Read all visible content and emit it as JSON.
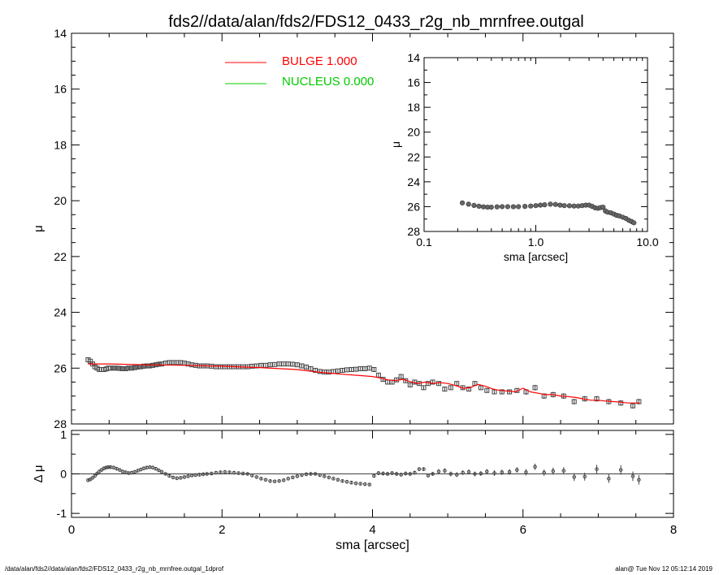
{
  "title": "fds2//data/alan/fds2/FDS12_0433_r2g_nb_mrnfree.outgal",
  "footer_left": "/data/alan/fds2//data/alan/fds2/FDS12_0433_r2g_nb_mrnfree.outgal_1dprof",
  "footer_right": "alan@  Tue Nov 12 05:12:14 2019",
  "colors": {
    "bulge": "#ff0000",
    "nucleus": "#00cc00",
    "points": "#444444",
    "axis": "#000000"
  },
  "chart_data": [
    {
      "id": "main",
      "type": "scatter",
      "xlabel": "",
      "ylabel": "μ",
      "xlim": [
        0,
        8
      ],
      "ylim": [
        28,
        14
      ],
      "yticks": [
        "14",
        "16",
        "18",
        "20",
        "22",
        "24",
        "26",
        "28"
      ],
      "legend": {
        "placement": "top-left",
        "entries": [
          {
            "label": "BULGE  1.000",
            "color": "#ff0000"
          },
          {
            "label": "NUCLEUS  0.000",
            "color": "#00cc00"
          }
        ]
      },
      "series": [
        {
          "name": "data",
          "marker": "square",
          "x": [
            0.22,
            0.25,
            0.28,
            0.31,
            0.34,
            0.37,
            0.4,
            0.43,
            0.46,
            0.49,
            0.52,
            0.56,
            0.6,
            0.64,
            0.68,
            0.72,
            0.76,
            0.8,
            0.84,
            0.88,
            0.92,
            0.96,
            1.0,
            1.04,
            1.08,
            1.12,
            1.16,
            1.2,
            1.25,
            1.3,
            1.35,
            1.4,
            1.45,
            1.5,
            1.55,
            1.6,
            1.65,
            1.7,
            1.75,
            1.8,
            1.86,
            1.92,
            1.98,
            2.04,
            2.1,
            2.16,
            2.22,
            2.28,
            2.34,
            2.4,
            2.46,
            2.52,
            2.58,
            2.64,
            2.7,
            2.76,
            2.82,
            2.88,
            2.94,
            3.0,
            3.06,
            3.12,
            3.18,
            3.24,
            3.3,
            3.36,
            3.42,
            3.48,
            3.54,
            3.6,
            3.66,
            3.72,
            3.78,
            3.84,
            3.9,
            3.96,
            4.02,
            4.08,
            4.14,
            4.2,
            4.26,
            4.32,
            4.38,
            4.44,
            4.5,
            4.56,
            4.62,
            4.68,
            4.74,
            4.8,
            4.88,
            4.96,
            5.04,
            5.12,
            5.2,
            5.28,
            5.36,
            5.44,
            5.52,
            5.62,
            5.72,
            5.82,
            5.92,
            6.04,
            6.16,
            6.28,
            6.4,
            6.54,
            6.68,
            6.82,
            6.98,
            7.14,
            7.3,
            7.46,
            7.54
          ],
          "y": [
            25.7,
            25.75,
            25.85,
            25.95,
            26.0,
            26.05,
            26.05,
            26.05,
            26.03,
            26.0,
            26.0,
            26.0,
            26.0,
            26.01,
            26.02,
            26.02,
            26.0,
            26.0,
            25.98,
            25.96,
            25.95,
            25.93,
            25.92,
            25.92,
            25.9,
            25.88,
            25.86,
            25.85,
            25.82,
            25.8,
            25.8,
            25.8,
            25.8,
            25.82,
            25.85,
            25.88,
            25.9,
            25.92,
            25.92,
            25.92,
            25.93,
            25.95,
            25.95,
            25.95,
            25.95,
            25.95,
            25.95,
            25.95,
            25.95,
            25.93,
            25.92,
            25.9,
            25.9,
            25.88,
            25.87,
            25.85,
            25.85,
            25.85,
            25.86,
            25.88,
            25.92,
            25.96,
            26.02,
            26.08,
            26.12,
            26.14,
            26.14,
            26.12,
            26.1,
            26.08,
            26.06,
            26.05,
            26.04,
            26.02,
            26.02,
            26.0,
            26.05,
            26.25,
            26.4,
            26.5,
            26.5,
            26.42,
            26.3,
            26.45,
            26.6,
            26.5,
            26.55,
            26.7,
            26.55,
            26.5,
            26.55,
            26.75,
            26.7,
            26.55,
            26.7,
            26.75,
            26.55,
            26.7,
            26.8,
            26.85,
            26.85,
            26.85,
            26.8,
            26.85,
            26.7,
            27.0,
            26.95,
            27.0,
            27.2,
            27.1,
            27.1,
            27.2,
            27.25,
            27.35,
            27.2
          ],
          "err": [
            0.06,
            0.06,
            0.06,
            0.06,
            0.06,
            0.06,
            0.06,
            0.06,
            0.06,
            0.06,
            0.06,
            0.06,
            0.06,
            0.06,
            0.06,
            0.06,
            0.06,
            0.06,
            0.06,
            0.06,
            0.06,
            0.06,
            0.06,
            0.06,
            0.06,
            0.06,
            0.06,
            0.06,
            0.06,
            0.06,
            0.06,
            0.06,
            0.06,
            0.06,
            0.06,
            0.06,
            0.06,
            0.06,
            0.06,
            0.06,
            0.06,
            0.06,
            0.06,
            0.06,
            0.06,
            0.06,
            0.06,
            0.06,
            0.06,
            0.06,
            0.06,
            0.06,
            0.06,
            0.06,
            0.06,
            0.06,
            0.06,
            0.06,
            0.06,
            0.06,
            0.06,
            0.06,
            0.06,
            0.06,
            0.06,
            0.06,
            0.06,
            0.06,
            0.06,
            0.06,
            0.06,
            0.06,
            0.06,
            0.06,
            0.06,
            0.06,
            0.06,
            0.08,
            0.08,
            0.08,
            0.08,
            0.08,
            0.08,
            0.08,
            0.08,
            0.08,
            0.08,
            0.08,
            0.08,
            0.08,
            0.08,
            0.08,
            0.08,
            0.08,
            0.08,
            0.08,
            0.08,
            0.08,
            0.08,
            0.08,
            0.08,
            0.08,
            0.08,
            0.1,
            0.1,
            0.1,
            0.1,
            0.1,
            0.1,
            0.1,
            0.1,
            0.1,
            0.1,
            0.1,
            0.1
          ]
        },
        {
          "name": "BULGE  1.000",
          "type": "line",
          "color": "#ff0000",
          "x": [
            0.22,
            0.5,
            1.0,
            1.5,
            2.0,
            2.5,
            3.0,
            3.3,
            3.6,
            3.9,
            4.0,
            4.1,
            4.2,
            4.3,
            4.4,
            4.5,
            4.6,
            4.7,
            4.8,
            4.9,
            5.0,
            5.1,
            5.2,
            5.3,
            5.4,
            5.5,
            5.6,
            5.7,
            5.8,
            5.9,
            6.0,
            6.1,
            6.2,
            6.3,
            6.4,
            6.5,
            6.6,
            6.7,
            6.8,
            6.9,
            7.0,
            7.1,
            7.2,
            7.3,
            7.4,
            7.55
          ],
          "y": [
            25.85,
            25.85,
            25.88,
            25.9,
            25.93,
            25.98,
            26.05,
            26.15,
            26.22,
            26.28,
            26.3,
            26.35,
            26.42,
            26.45,
            26.4,
            26.48,
            26.55,
            26.5,
            26.55,
            26.52,
            26.55,
            26.62,
            26.72,
            26.7,
            26.58,
            26.65,
            26.75,
            26.8,
            26.82,
            26.85,
            26.72,
            26.85,
            26.9,
            26.95,
            26.95,
            27.0,
            27.02,
            27.05,
            27.1,
            27.15,
            27.15,
            27.18,
            27.2,
            27.22,
            27.25,
            27.25
          ]
        },
        {
          "name": "NUCLEUS  0.000",
          "type": "line",
          "color": "#00cc00",
          "x": [],
          "y": []
        }
      ]
    },
    {
      "id": "resid",
      "type": "scatter",
      "xlabel": "sma [arcsec]",
      "ylabel": "Δ μ",
      "xlim": [
        0,
        8
      ],
      "ylim": [
        -1.1,
        1.1
      ],
      "xticks": [
        "0",
        "2",
        "4",
        "6",
        "8"
      ],
      "yticks": [
        "-1",
        "0",
        "1"
      ],
      "series": [
        {
          "name": "residual",
          "x": [
            0.22,
            0.25,
            0.28,
            0.31,
            0.34,
            0.37,
            0.4,
            0.43,
            0.46,
            0.49,
            0.52,
            0.56,
            0.6,
            0.64,
            0.68,
            0.72,
            0.76,
            0.8,
            0.84,
            0.88,
            0.92,
            0.96,
            1.0,
            1.04,
            1.08,
            1.12,
            1.16,
            1.2,
            1.25,
            1.3,
            1.35,
            1.4,
            1.45,
            1.5,
            1.55,
            1.6,
            1.65,
            1.7,
            1.75,
            1.8,
            1.86,
            1.92,
            1.98,
            2.04,
            2.1,
            2.16,
            2.22,
            2.28,
            2.34,
            2.4,
            2.46,
            2.52,
            2.58,
            2.64,
            2.7,
            2.76,
            2.82,
            2.88,
            2.94,
            3.0,
            3.06,
            3.12,
            3.18,
            3.24,
            3.3,
            3.36,
            3.42,
            3.48,
            3.54,
            3.6,
            3.66,
            3.72,
            3.78,
            3.84,
            3.9,
            3.96,
            4.02,
            4.08,
            4.14,
            4.2,
            4.26,
            4.32,
            4.38,
            4.44,
            4.5,
            4.56,
            4.62,
            4.68,
            4.74,
            4.8,
            4.88,
            4.96,
            5.04,
            5.12,
            5.2,
            5.28,
            5.36,
            5.44,
            5.52,
            5.62,
            5.72,
            5.82,
            5.92,
            6.04,
            6.16,
            6.28,
            6.4,
            6.54,
            6.68,
            6.82,
            6.98,
            7.14,
            7.3,
            7.46,
            7.54
          ],
          "y": [
            -0.16,
            -0.14,
            -0.1,
            -0.05,
            0.01,
            0.06,
            0.1,
            0.14,
            0.16,
            0.17,
            0.17,
            0.16,
            0.13,
            0.1,
            0.06,
            0.04,
            0.02,
            0.03,
            0.05,
            0.08,
            0.11,
            0.14,
            0.16,
            0.17,
            0.16,
            0.13,
            0.09,
            0.05,
            0.0,
            -0.05,
            -0.09,
            -0.11,
            -0.1,
            -0.08,
            -0.06,
            -0.04,
            -0.03,
            -0.02,
            -0.01,
            0.0,
            0.01,
            0.03,
            0.04,
            0.05,
            0.04,
            0.03,
            0.02,
            0.01,
            0.0,
            -0.04,
            -0.08,
            -0.12,
            -0.15,
            -0.18,
            -0.19,
            -0.18,
            -0.16,
            -0.12,
            -0.09,
            -0.06,
            -0.03,
            -0.01,
            0.0,
            0.0,
            -0.03,
            -0.06,
            -0.09,
            -0.12,
            -0.15,
            -0.18,
            -0.2,
            -0.22,
            -0.24,
            -0.25,
            -0.26,
            -0.27,
            -0.05,
            0.02,
            0.01,
            0.0,
            0.02,
            0.0,
            -0.02,
            0.01,
            0.0,
            0.03,
            0.12,
            0.12,
            -0.04,
            0.0,
            0.06,
            0.08,
            0.0,
            -0.02,
            0.03,
            0.05,
            0.0,
            0.01,
            0.06,
            0.02,
            0.04,
            0.05,
            0.1,
            0.04,
            0.18,
            0.03,
            0.07,
            0.08,
            -0.08,
            -0.07,
            0.12,
            -0.12,
            0.1,
            -0.06,
            -0.15
          ],
          "err": [
            0.03,
            0.03,
            0.03,
            0.03,
            0.03,
            0.03,
            0.03,
            0.03,
            0.03,
            0.03,
            0.03,
            0.03,
            0.03,
            0.03,
            0.03,
            0.03,
            0.03,
            0.03,
            0.03,
            0.03,
            0.03,
            0.03,
            0.03,
            0.03,
            0.03,
            0.03,
            0.03,
            0.03,
            0.03,
            0.03,
            0.03,
            0.03,
            0.03,
            0.03,
            0.03,
            0.03,
            0.03,
            0.03,
            0.03,
            0.03,
            0.03,
            0.03,
            0.03,
            0.03,
            0.03,
            0.03,
            0.03,
            0.03,
            0.03,
            0.03,
            0.03,
            0.03,
            0.03,
            0.03,
            0.03,
            0.03,
            0.03,
            0.03,
            0.03,
            0.03,
            0.03,
            0.03,
            0.03,
            0.03,
            0.03,
            0.03,
            0.03,
            0.03,
            0.03,
            0.03,
            0.03,
            0.03,
            0.03,
            0.03,
            0.03,
            0.03,
            0.05,
            0.05,
            0.05,
            0.05,
            0.05,
            0.05,
            0.05,
            0.05,
            0.05,
            0.05,
            0.05,
            0.05,
            0.05,
            0.05,
            0.06,
            0.06,
            0.06,
            0.06,
            0.06,
            0.06,
            0.06,
            0.06,
            0.06,
            0.07,
            0.07,
            0.07,
            0.07,
            0.08,
            0.08,
            0.08,
            0.09,
            0.09,
            0.1,
            0.1,
            0.11,
            0.11,
            0.12,
            0.12,
            0.12
          ]
        }
      ]
    },
    {
      "id": "inset",
      "type": "scatter",
      "xscale": "log",
      "xlabel": "sma [arcsec]",
      "ylabel": "μ",
      "xlim": [
        0.1,
        10.0
      ],
      "ylim": [
        28,
        14
      ],
      "xticks": [
        "0.1",
        "1.0",
        "10.0"
      ],
      "yticks": [
        "14",
        "16",
        "18",
        "20",
        "22",
        "24",
        "26",
        "28"
      ],
      "series": [
        {
          "name": "data",
          "x": [
            0.22,
            0.25,
            0.28,
            0.31,
            0.34,
            0.37,
            0.4,
            0.45,
            0.5,
            0.56,
            0.63,
            0.7,
            0.8,
            0.9,
            1.0,
            1.1,
            1.2,
            1.35,
            1.5,
            1.65,
            1.8,
            2.0,
            2.2,
            2.4,
            2.6,
            2.8,
            3.0,
            3.2,
            3.4,
            3.6,
            3.8,
            4.0,
            4.2,
            4.4,
            4.7,
            5.0,
            5.3,
            5.6,
            6.0,
            6.4,
            6.8,
            7.2,
            7.55
          ],
          "y": [
            25.7,
            25.8,
            25.9,
            25.97,
            26.02,
            26.04,
            26.04,
            26.02,
            26.0,
            26.0,
            26.01,
            26.0,
            25.98,
            25.95,
            25.92,
            25.88,
            25.85,
            25.8,
            25.82,
            25.88,
            25.92,
            25.93,
            25.95,
            25.95,
            25.92,
            25.88,
            25.88,
            25.98,
            26.1,
            26.13,
            26.08,
            26.04,
            26.35,
            26.45,
            26.5,
            26.6,
            26.7,
            26.75,
            26.85,
            26.95,
            27.1,
            27.2,
            27.3
          ]
        }
      ]
    }
  ]
}
